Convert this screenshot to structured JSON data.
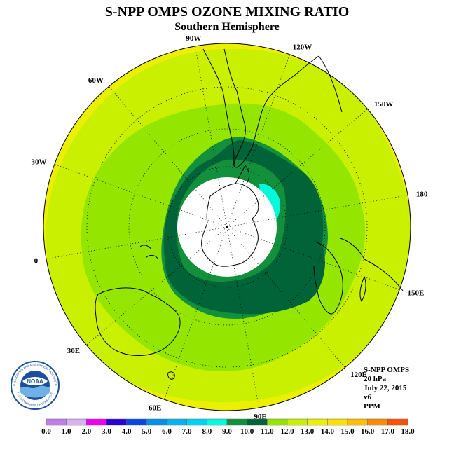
{
  "header": {
    "title": "S-NPP OMPS OZONE MIXING RATIO",
    "subtitle": "Southern Hemisphere"
  },
  "map": {
    "projection": "south polar stereographic",
    "longitude_labels": [
      {
        "text": "90W",
        "lon": -90
      },
      {
        "text": "60W",
        "lon": -60
      },
      {
        "text": "30W",
        "lon": -30
      },
      {
        "text": "0",
        "lon": 0
      },
      {
        "text": "30E",
        "lon": 30
      },
      {
        "text": "60E",
        "lon": 60
      },
      {
        "text": "90E",
        "lon": 90
      },
      {
        "text": "120E",
        "lon": 120
      },
      {
        "text": "150E",
        "lon": 150
      },
      {
        "text": "180",
        "lon": 180
      },
      {
        "text": "150W",
        "lon": -150
      },
      {
        "text": "120W",
        "lon": -120
      }
    ],
    "missing_data_region": "polar night (white)"
  },
  "info_block": {
    "instrument": "S-NPP OMPS",
    "level": "20 hPa",
    "date": "July 22, 2015",
    "version": "v6",
    "units": "PPM"
  },
  "colorbar": {
    "labels": [
      "0.0",
      "1.0",
      "2.0",
      "3.0",
      "4.0",
      "5.0",
      "6.0",
      "7.0",
      "8.0",
      "9.0",
      "10.0",
      "11.0",
      "12.0",
      "13.0",
      "14.0",
      "15.0",
      "16.0",
      "17.0",
      "18.0"
    ],
    "colors": [
      "#bf7fe8",
      "#d9b0f0",
      "#ee00ee",
      "#2a00d4",
      "#0a46e0",
      "#0090e6",
      "#00b4f0",
      "#00d2f5",
      "#00fadc",
      "#13903c",
      "#006438",
      "#94e600",
      "#c8f000",
      "#ebf000",
      "#ffe000",
      "#ffbe00",
      "#ff8c00",
      "#ff5000",
      "#ff0000",
      "#8c5a3c"
    ]
  },
  "logo": {
    "name": "NOAA",
    "ring_text": "NATIONAL OCEANIC AND ATMOSPHERIC ADMINISTRATION",
    "ring_text_lower": "U.S. DEPARTMENT OF COMMERCE"
  }
}
